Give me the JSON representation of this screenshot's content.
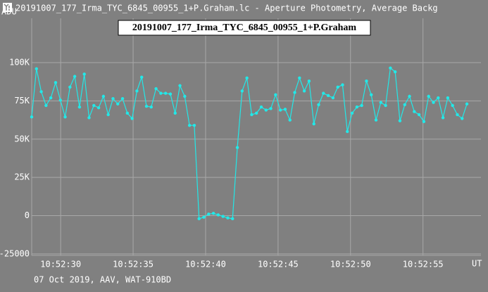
{
  "window_title": "20191007_177_Irma_TYC_6845_00955_1+P.Graham.lc - Aperture Photometry, Average Backg",
  "chart_data": {
    "type": "line",
    "title": "20191007_177_Irma_TYC_6845_00955_1+P.Graham",
    "y_label": "ADU",
    "x_label": "UT",
    "footer": "07 Oct 2019, AAV, WAT-910BD",
    "x": [
      39148.0,
      39148.33,
      39148.66,
      39148.99,
      39149.32,
      39149.65,
      39149.98,
      39150.31,
      39150.64,
      39150.97,
      39151.3,
      39151.63,
      39151.96,
      39152.29,
      39152.62,
      39152.95,
      39153.28,
      39153.61,
      39153.94,
      39154.27,
      39154.6,
      39154.93,
      39155.26,
      39155.59,
      39155.92,
      39156.25,
      39156.58,
      39156.91,
      39157.24,
      39157.57,
      39157.9,
      39158.23,
      39158.56,
      39158.89,
      39159.22,
      39159.55,
      39159.88,
      39160.21,
      39160.54,
      39160.87,
      39161.2,
      39161.53,
      39161.86,
      39162.19,
      39162.52,
      39162.85,
      39163.18,
      39163.51,
      39163.84,
      39164.17,
      39164.5,
      39164.83,
      39165.16,
      39165.49,
      39165.82,
      39166.15,
      39166.48,
      39166.81,
      39167.14,
      39167.47,
      39167.8,
      39168.13,
      39168.46,
      39168.79,
      39169.12,
      39169.45,
      39169.78,
      39170.11,
      39170.44,
      39170.77,
      39171.1,
      39171.43,
      39171.76,
      39172.09,
      39172.42,
      39172.75,
      39173.08,
      39173.41,
      39173.74,
      39174.07,
      39174.4,
      39174.73,
      39175.06,
      39175.39,
      39175.72,
      39176.05,
      39176.38,
      39176.71,
      39177.04,
      39177.37,
      39177.7,
      39178.03
    ],
    "series": [
      {
        "color": "#22e8e8",
        "values": [
          64500,
          96000,
          81000,
          72000,
          77000,
          87000,
          75500,
          64500,
          84000,
          91000,
          71000,
          92500,
          64000,
          72000,
          70500,
          78000,
          66000,
          76500,
          73000,
          76500,
          67000,
          63500,
          81500,
          90500,
          71500,
          71000,
          83000,
          80000,
          80000,
          79500,
          67000,
          85000,
          78000,
          59000,
          59000,
          -2000,
          -1000,
          1000,
          1500,
          500,
          -500,
          -1500,
          -2000,
          44500,
          81500,
          90000,
          66000,
          67000,
          71000,
          69000,
          70000,
          79000,
          69000,
          69500,
          62500,
          80500,
          90000,
          81500,
          88000,
          60000,
          72500,
          80000,
          78500,
          77000,
          84000,
          85500,
          55000,
          67000,
          71000,
          72000,
          88000,
          79000,
          62500,
          74000,
          72000,
          96500,
          94000,
          62000,
          72500,
          78000,
          68000,
          66000,
          61500,
          78000,
          74000,
          77000,
          64000,
          77000,
          72000,
          66000,
          63500,
          73000
        ]
      }
    ],
    "xlim": [
      39148,
      39179
    ],
    "ylim": [
      -26000,
      129000
    ],
    "xticks": [
      {
        "value": 39150,
        "label": "10:52:30"
      },
      {
        "value": 39155,
        "label": "10:52:35"
      },
      {
        "value": 39160,
        "label": "10:52:40"
      },
      {
        "value": 39165,
        "label": "10:52:45"
      },
      {
        "value": 39170,
        "label": "10:52:50"
      },
      {
        "value": 39175,
        "label": "10:52:55"
      }
    ],
    "yticks": [
      {
        "value": -25000,
        "label": "-25000"
      },
      0,
      {
        "value": 25000,
        "label": "25K"
      },
      {
        "value": 50000,
        "label": "50K"
      },
      {
        "value": 75000,
        "label": "75K"
      },
      {
        "value": 100000,
        "label": "100K"
      }
    ],
    "grid": true
  }
}
